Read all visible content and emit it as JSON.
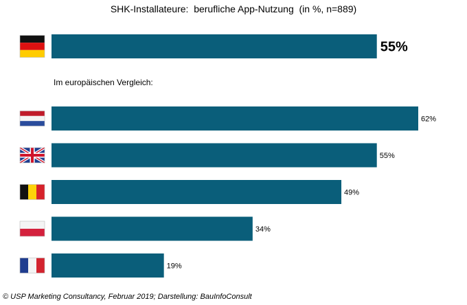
{
  "chart_data": {
    "type": "bar",
    "orientation": "horizontal",
    "title": "SHK-Installateure:  berufliche App-Nutzung  (in %, n=889)",
    "subtitle": "Im europäischen Vergleich:",
    "unit": "%",
    "bar_color": "#0a5e7a",
    "xlim": [
      0,
      62
    ],
    "headline": {
      "country": "Deutschland",
      "flag": "flag-germany-icon",
      "value": 55,
      "label": "55%"
    },
    "comparison": [
      {
        "country": "Niederlande",
        "flag": "flag-netherlands-icon",
        "value": 62,
        "label": "62%"
      },
      {
        "country": "Großbritannien",
        "flag": "flag-uk-icon",
        "value": 55,
        "label": "55%"
      },
      {
        "country": "Belgien",
        "flag": "flag-belgium-icon",
        "value": 49,
        "label": "49%"
      },
      {
        "country": "Polen",
        "flag": "flag-poland-icon",
        "value": 34,
        "label": "34%"
      },
      {
        "country": "Frankreich",
        "flag": "flag-france-icon",
        "value": 19,
        "label": "19%"
      }
    ]
  },
  "source": "© USP Marketing Consultancy, Februar 2019; Darstellung: BauInfoConsult"
}
